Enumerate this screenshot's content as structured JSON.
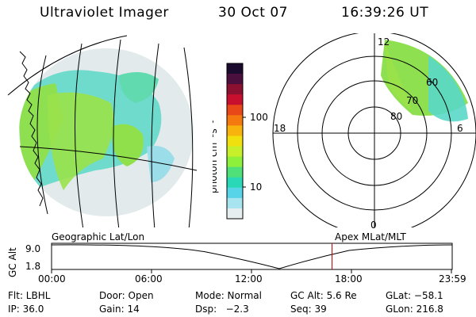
{
  "header": {
    "title": "Ultraviolet Imager",
    "date": "30 Oct 07",
    "time": "16:39:26 UT"
  },
  "colorbar": {
    "label": "photon cm⁻²s⁻¹",
    "ticks": [
      "100",
      "10"
    ],
    "colors": [
      "#1a0a2e",
      "#4b0f3e",
      "#8c1030",
      "#c8102e",
      "#e84818",
      "#f47a10",
      "#f8b40c",
      "#f0e00e",
      "#c8f02a",
      "#8ef03a",
      "#50e07a",
      "#2ad8b8",
      "#58d4e8",
      "#a8e4f0",
      "#e6eef0"
    ]
  },
  "labels": {
    "geo": "Geographic Lat/Lon",
    "apex": "Apex MLat/MLT"
  },
  "polar": {
    "mlt": [
      "12",
      "18",
      "6",
      "0"
    ],
    "lat": [
      "60",
      "70",
      "80"
    ]
  },
  "timeline": {
    "ylabel": "GC Alt",
    "yticks": [
      "9.0",
      "1.8"
    ],
    "xticks": [
      "00:00",
      "06:00",
      "12:00",
      "18:00",
      "23:59"
    ],
    "current_fraction": 0.7
  },
  "footer": {
    "row1": [
      "Flt: LBHL",
      "Door: Open",
      "Mode: Normal",
      "GC Alt: 5.6 Re",
      "GLat: −58.1"
    ],
    "row2": [
      "IP: 36.0",
      "Gain: 14",
      "Dsp:   −2.3",
      "Seq: 39",
      "GLon: 216.8"
    ]
  },
  "colors": {
    "foreground": "#000000",
    "background": "#ffffff",
    "marker": "#cc0000"
  }
}
